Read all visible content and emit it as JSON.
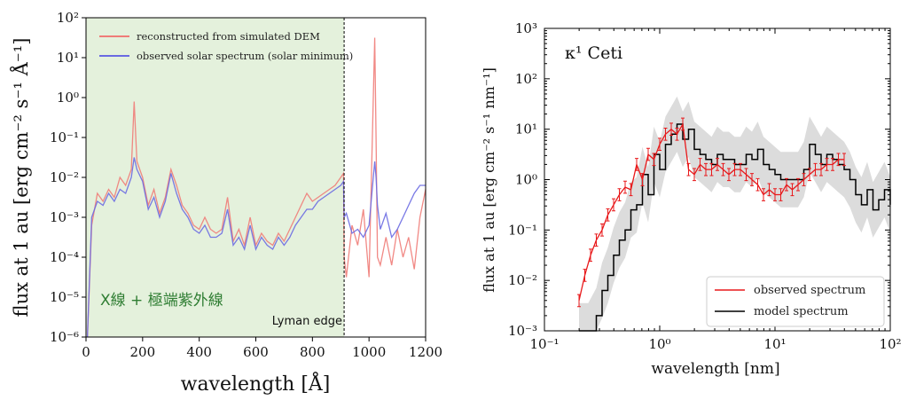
{
  "chart_data": [
    {
      "type": "line",
      "xlabel": "wavelength [Å]",
      "ylabel": "flux at 1 au [erg cm⁻² s⁻¹ Å⁻¹]",
      "xlim": [
        0,
        1200
      ],
      "ylim_log10": [
        -6,
        2
      ],
      "xticks": [
        "0",
        "200",
        "400",
        "600",
        "800",
        "1000",
        "1200"
      ],
      "yticks": [
        "10⁻⁶",
        "10⁻⁵",
        "10⁻⁴",
        "10⁻³",
        "10⁻²",
        "10⁻¹",
        "10⁰",
        "10¹",
        "10²"
      ],
      "region_label": "X線 + 極端紫外線",
      "edge_label": "Lyman edge",
      "lyman_edge": 912,
      "legend": [
        "reconstructed from simulated DEM",
        "observed solar spectrum (solar minimum)"
      ],
      "colors": {
        "reconstructed": "#f07c78",
        "observed": "#6a6ae2",
        "region": "#e4f1dc",
        "region_text": "#2e7d32"
      },
      "series": [
        {
          "name": "reconstructed from simulated DEM",
          "x": [
            5,
            20,
            40,
            60,
            80,
            100,
            120,
            140,
            160,
            170,
            180,
            200,
            220,
            240,
            260,
            280,
            300,
            320,
            340,
            360,
            380,
            400,
            420,
            440,
            460,
            480,
            500,
            520,
            540,
            560,
            580,
            600,
            620,
            640,
            660,
            680,
            700,
            720,
            740,
            760,
            780,
            800,
            820,
            840,
            860,
            880,
            900,
            910,
            912,
            920,
            940,
            960,
            980,
            1000,
            1020,
            1025,
            1030,
            1040,
            1060,
            1080,
            1100,
            1120,
            1140,
            1160,
            1180,
            1200
          ],
          "log10y": [
            -6,
            -3.2,
            -2.4,
            -2.6,
            -2.3,
            -2.5,
            -2.0,
            -2.2,
            -1.8,
            -0.1,
            -1.6,
            -2.0,
            -2.7,
            -2.3,
            -2.9,
            -2.5,
            -1.8,
            -2.2,
            -2.7,
            -2.9,
            -3.2,
            -3.3,
            -3.0,
            -3.3,
            -3.4,
            -3.3,
            -2.5,
            -3.6,
            -3.3,
            -3.7,
            -3.0,
            -3.7,
            -3.4,
            -3.6,
            -3.7,
            -3.4,
            -3.6,
            -3.3,
            -3.0,
            -2.7,
            -2.4,
            -2.6,
            -2.5,
            -2.4,
            -2.3,
            -2.2,
            -2.0,
            -1.9,
            -4.0,
            -4.5,
            -3.2,
            -3.7,
            -2.8,
            -4.5,
            1.5,
            -1.0,
            -4.0,
            -4.2,
            -3.5,
            -4.2,
            -3.3,
            -4.0,
            -3.5,
            -4.3,
            -3.0,
            -2.3
          ]
        },
        {
          "name": "observed solar spectrum (solar minimum)",
          "x": [
            5,
            20,
            40,
            60,
            80,
            100,
            120,
            140,
            160,
            170,
            180,
            200,
            220,
            240,
            260,
            280,
            300,
            320,
            340,
            360,
            380,
            400,
            420,
            440,
            460,
            480,
            500,
            520,
            540,
            560,
            580,
            600,
            620,
            640,
            660,
            680,
            700,
            720,
            740,
            760,
            780,
            800,
            820,
            840,
            860,
            880,
            900,
            910,
            912,
            920,
            940,
            960,
            980,
            1000,
            1020,
            1025,
            1030,
            1040,
            1060,
            1080,
            1100,
            1120,
            1140,
            1160,
            1180,
            1200
          ],
          "log10y": [
            -6,
            -3.0,
            -2.6,
            -2.7,
            -2.4,
            -2.6,
            -2.3,
            -2.4,
            -2.0,
            -1.5,
            -1.8,
            -2.1,
            -2.8,
            -2.5,
            -3.0,
            -2.6,
            -1.9,
            -2.4,
            -2.8,
            -3.0,
            -3.3,
            -3.4,
            -3.2,
            -3.5,
            -3.5,
            -3.4,
            -2.8,
            -3.7,
            -3.5,
            -3.8,
            -3.2,
            -3.8,
            -3.5,
            -3.7,
            -3.8,
            -3.5,
            -3.7,
            -3.5,
            -3.2,
            -3.0,
            -2.8,
            -2.8,
            -2.6,
            -2.5,
            -2.4,
            -2.3,
            -2.2,
            -2.1,
            -3.0,
            -2.9,
            -3.4,
            -3.3,
            -3.5,
            -3.2,
            -1.6,
            -2.0,
            -2.7,
            -3.3,
            -2.9,
            -3.5,
            -3.3,
            -3.0,
            -2.7,
            -2.4,
            -2.2,
            -2.2
          ]
        }
      ]
    },
    {
      "type": "line",
      "title": "κ¹ Ceti",
      "xlabel": "wavelength [nm]",
      "ylabel": "flux at 1 au [erg cm⁻² s⁻¹ nm⁻¹]",
      "xlim_log10": [
        -1,
        2
      ],
      "ylim_log10": [
        -3,
        3
      ],
      "xticks": [
        "10⁻¹",
        "10⁰",
        "10¹",
        "10²"
      ],
      "yticks": [
        "10⁻³",
        "10⁻²",
        "10⁻¹",
        "10⁰",
        "10¹",
        "10²",
        "10³"
      ],
      "legend": [
        "observed spectrum",
        "model spectrum"
      ],
      "colors": {
        "observed": "#e8191b",
        "model": "#000000",
        "band": "#dcdcdc"
      },
      "series": [
        {
          "name": "model spectrum",
          "log10x": [
            -0.7,
            -0.62,
            -0.55,
            -0.5,
            -0.45,
            -0.4,
            -0.35,
            -0.3,
            -0.25,
            -0.2,
            -0.15,
            -0.1,
            -0.05,
            0.0,
            0.05,
            0.1,
            0.15,
            0.2,
            0.25,
            0.3,
            0.35,
            0.4,
            0.45,
            0.5,
            0.55,
            0.6,
            0.65,
            0.7,
            0.75,
            0.8,
            0.85,
            0.9,
            0.95,
            1.0,
            1.05,
            1.1,
            1.15,
            1.2,
            1.25,
            1.3,
            1.35,
            1.4,
            1.45,
            1.5,
            1.55,
            1.6,
            1.65,
            1.7,
            1.75,
            1.8,
            1.85,
            1.9,
            1.95,
            2.0
          ],
          "log10y": [
            -3,
            -3,
            -2.7,
            -2.2,
            -1.9,
            -1.5,
            -1.2,
            -1.0,
            -0.6,
            -0.5,
            0.1,
            -0.3,
            0.5,
            0.2,
            0.7,
            0.9,
            1.1,
            0.8,
            1.0,
            0.6,
            0.5,
            0.4,
            0.3,
            0.5,
            0.4,
            0.4,
            0.3,
            0.3,
            0.5,
            0.4,
            0.6,
            0.3,
            0.2,
            0.1,
            0.0,
            0.0,
            0.0,
            0.0,
            0.2,
            0.7,
            0.5,
            0.3,
            0.5,
            0.4,
            0.3,
            0.2,
            0.0,
            -0.3,
            -0.5,
            -0.2,
            -0.6,
            -0.4,
            -0.2,
            -0.5
          ]
        },
        {
          "name": "observed spectrum",
          "log10x": [
            -0.7,
            -0.65,
            -0.6,
            -0.55,
            -0.5,
            -0.45,
            -0.4,
            -0.35,
            -0.3,
            -0.25,
            -0.2,
            -0.15,
            -0.1,
            -0.05,
            0.0,
            0.05,
            0.1,
            0.15,
            0.2,
            0.25,
            0.3,
            0.35,
            0.4,
            0.45,
            0.5,
            0.55,
            0.6,
            0.65,
            0.7,
            0.75,
            0.8,
            0.85,
            0.9,
            0.95,
            1.0,
            1.05,
            1.1,
            1.15,
            1.2,
            1.25,
            1.3,
            1.35,
            1.4,
            1.45,
            1.5,
            1.55,
            1.6
          ],
          "log10y": [
            -2.4,
            -1.9,
            -1.5,
            -1.2,
            -1.0,
            -0.7,
            -0.5,
            -0.3,
            -0.15,
            -0.2,
            0.3,
            0.0,
            0.5,
            0.4,
            0.7,
            0.9,
            1.0,
            0.9,
            1.1,
            0.2,
            0.1,
            0.3,
            0.2,
            0.2,
            0.3,
            0.2,
            0.1,
            0.2,
            0.2,
            0.1,
            0.0,
            -0.1,
            -0.3,
            -0.2,
            -0.3,
            -0.3,
            -0.1,
            -0.2,
            -0.1,
            0.0,
            0.1,
            0.2,
            0.2,
            0.3,
            0.3,
            0.4,
            0.4
          ]
        }
      ]
    }
  ]
}
